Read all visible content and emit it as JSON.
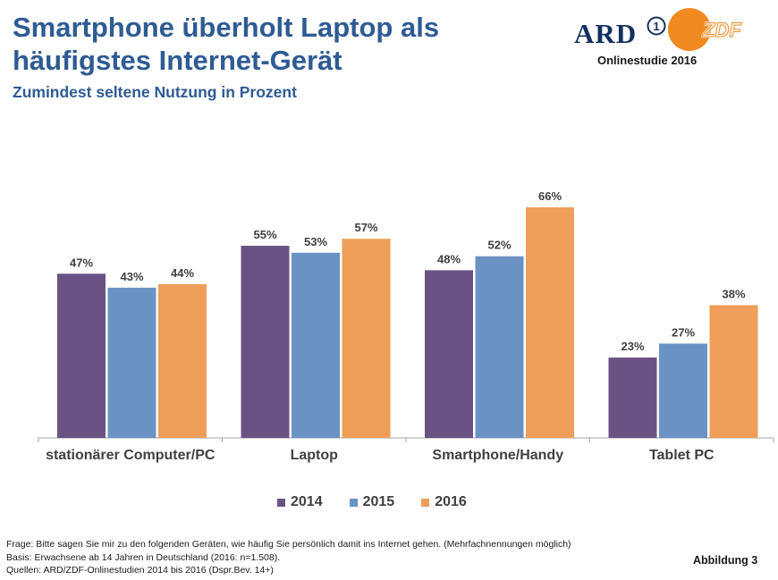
{
  "header": {
    "title_line1": "Smartphone überholt Laptop als",
    "title_line2": "häufigstes Internet-Gerät",
    "subtitle": "Zumindest seltene Nutzung in Prozent"
  },
  "logo": {
    "ard_text": "ARD",
    "ard_mark": "1",
    "zdf_text": "ZDF",
    "caption": "Onlinestudie 2016",
    "ard_color": "#13315f",
    "zdf_color": "#f08a21"
  },
  "chart_data": {
    "type": "bar",
    "categories": [
      "stationärer Computer/PC",
      "Laptop",
      "Smartphone/Handy",
      "Tablet PC"
    ],
    "series": [
      {
        "name": "2014",
        "values": [
          47,
          55,
          48,
          23
        ],
        "color": "#6a5384"
      },
      {
        "name": "2015",
        "values": [
          43,
          53,
          52,
          27
        ],
        "color": "#6a93c4"
      },
      {
        "name": "2016",
        "values": [
          44,
          57,
          66,
          38
        ],
        "color": "#ee9e58"
      }
    ],
    "value_suffix": "%",
    "ylim": [
      0,
      66
    ],
    "grid": false,
    "legend_position": "bottom",
    "title": "Zumindest seltene Nutzung in Prozent"
  },
  "footnotes": {
    "frage": "Frage: Bitte sagen Sie mir zu den folgenden Geräten, wie häufig Sie persönlich damit ins Internet gehen. (Mehrfachnennungen möglich)",
    "basis": "Basis: Erwachsene ab 14 Jahren in Deutschland  (2016: n=1.508).",
    "quellen": "Quellen: ARD/ZDF-Onlinestudien 2014 bis 2016 (Dspr.Bev. 14+)"
  },
  "figure_label": "Abbildung 3"
}
